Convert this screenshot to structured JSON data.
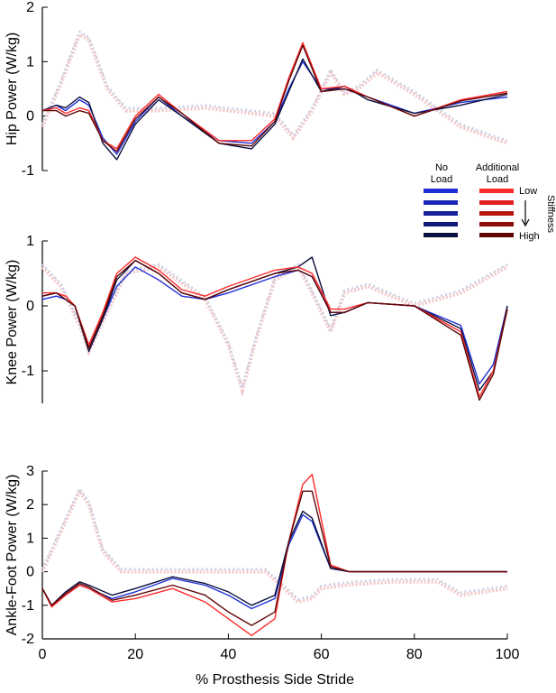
{
  "chart_data": [
    {
      "type": "line",
      "ylabel": "Hip Power (W/kg)",
      "xlim": [
        0,
        100
      ],
      "ylim": [
        -1,
        2
      ],
      "yticks": [
        -1,
        0,
        1,
        2
      ],
      "grid": false,
      "series": [
        {
          "group": "no_load",
          "level": 1,
          "x": [
            0,
            3,
            5,
            8,
            10,
            13,
            16,
            20,
            25,
            30,
            38,
            45,
            50,
            53,
            56,
            60,
            65,
            70,
            80,
            90,
            100
          ],
          "y": [
            0.1,
            0.2,
            0.1,
            0.3,
            0.2,
            -0.4,
            -0.7,
            -0.1,
            0.35,
            0.0,
            -0.45,
            -0.5,
            -0.1,
            0.5,
            1.0,
            0.5,
            0.5,
            0.35,
            0.05,
            0.25,
            0.35
          ]
        },
        {
          "group": "no_load",
          "level": 5,
          "x": [
            0,
            3,
            5,
            8,
            10,
            13,
            16,
            20,
            25,
            30,
            38,
            45,
            50,
            53,
            56,
            60,
            65,
            70,
            80,
            90,
            100
          ],
          "y": [
            0.1,
            0.2,
            0.15,
            0.35,
            0.25,
            -0.5,
            -0.8,
            -0.15,
            0.3,
            0.0,
            -0.5,
            -0.6,
            -0.15,
            0.45,
            1.05,
            0.45,
            0.55,
            0.3,
            0.05,
            0.2,
            0.4
          ]
        },
        {
          "group": "additional_load",
          "level": 1,
          "x": [
            0,
            3,
            5,
            8,
            10,
            13,
            16,
            20,
            25,
            30,
            38,
            45,
            50,
            53,
            56,
            60,
            65,
            70,
            80,
            90,
            100
          ],
          "y": [
            0.1,
            0.15,
            0.05,
            0.15,
            0.1,
            -0.45,
            -0.6,
            0.0,
            0.4,
            0.05,
            -0.45,
            -0.45,
            -0.05,
            0.7,
            1.35,
            0.5,
            0.55,
            0.35,
            0.0,
            0.3,
            0.45
          ]
        },
        {
          "group": "additional_load",
          "level": 5,
          "x": [
            0,
            3,
            5,
            8,
            10,
            13,
            16,
            20,
            25,
            30,
            38,
            45,
            50,
            53,
            56,
            60,
            65,
            70,
            80,
            90,
            100
          ],
          "y": [
            0.1,
            0.1,
            0.0,
            0.1,
            0.05,
            -0.45,
            -0.65,
            -0.05,
            0.35,
            0.05,
            -0.5,
            -0.55,
            -0.1,
            0.65,
            1.3,
            0.45,
            0.5,
            0.35,
            0.0,
            0.28,
            0.42
          ]
        },
        {
          "group": "contralateral",
          "dotted": true,
          "x": [
            0,
            4,
            8,
            10,
            14,
            18,
            25,
            35,
            45,
            50,
            54,
            58,
            62,
            65,
            68,
            72,
            80,
            90,
            100
          ],
          "y": [
            -0.2,
            0.6,
            1.5,
            1.4,
            0.5,
            0.1,
            0.1,
            0.15,
            0.05,
            0.0,
            -0.4,
            0.1,
            0.8,
            0.4,
            0.5,
            0.8,
            0.4,
            -0.2,
            -0.5
          ]
        }
      ]
    },
    {
      "type": "line",
      "ylabel": "Knee Power (W/kg)",
      "xlim": [
        0,
        100
      ],
      "ylim": [
        -1.5,
        1
      ],
      "yticks": [
        -1,
        0,
        1
      ],
      "grid": false,
      "series": [
        {
          "group": "no_load",
          "level": 1,
          "x": [
            0,
            3,
            5,
            7,
            10,
            13,
            16,
            20,
            25,
            30,
            35,
            40,
            50,
            55,
            58,
            62,
            65,
            70,
            80,
            90,
            94,
            97,
            100
          ],
          "y": [
            0.1,
            0.15,
            0.1,
            0.0,
            -0.65,
            -0.2,
            0.3,
            0.6,
            0.4,
            0.15,
            0.1,
            0.2,
            0.45,
            0.55,
            0.45,
            -0.1,
            -0.1,
            0.05,
            0.0,
            -0.3,
            -1.2,
            -0.9,
            0.0
          ]
        },
        {
          "group": "no_load",
          "level": 5,
          "x": [
            0,
            3,
            5,
            7,
            10,
            13,
            16,
            20,
            25,
            30,
            35,
            40,
            50,
            55,
            58,
            62,
            65,
            70,
            80,
            90,
            94,
            97,
            100
          ],
          "y": [
            0.15,
            0.2,
            0.1,
            0.0,
            -0.7,
            -0.2,
            0.4,
            0.7,
            0.5,
            0.2,
            0.1,
            0.25,
            0.5,
            0.6,
            0.75,
            -0.15,
            -0.1,
            0.05,
            0.0,
            -0.35,
            -1.3,
            -1.0,
            0.0
          ]
        },
        {
          "group": "additional_load",
          "level": 1,
          "x": [
            0,
            3,
            5,
            7,
            10,
            13,
            16,
            20,
            25,
            30,
            35,
            40,
            50,
            55,
            58,
            62,
            65,
            70,
            80,
            90,
            94,
            97,
            100
          ],
          "y": [
            0.2,
            0.2,
            0.15,
            0.0,
            -0.6,
            -0.1,
            0.5,
            0.75,
            0.55,
            0.25,
            0.15,
            0.3,
            0.55,
            0.6,
            0.5,
            -0.05,
            -0.05,
            0.05,
            0.0,
            -0.4,
            -1.4,
            -1.0,
            -0.05
          ]
        },
        {
          "group": "additional_load",
          "level": 5,
          "x": [
            0,
            3,
            5,
            7,
            10,
            13,
            16,
            20,
            25,
            30,
            35,
            40,
            50,
            55,
            58,
            62,
            65,
            70,
            80,
            90,
            94,
            97,
            100
          ],
          "y": [
            0.15,
            0.2,
            0.1,
            0.0,
            -0.65,
            -0.15,
            0.45,
            0.7,
            0.5,
            0.2,
            0.1,
            0.25,
            0.5,
            0.55,
            0.45,
            -0.1,
            -0.1,
            0.05,
            0.0,
            -0.45,
            -1.45,
            -1.05,
            -0.05
          ]
        },
        {
          "group": "contralateral",
          "dotted": true,
          "x": [
            0,
            4,
            8,
            10,
            14,
            18,
            25,
            35,
            40,
            43,
            46,
            50,
            55,
            58,
            62,
            65,
            70,
            80,
            90,
            100
          ],
          "y": [
            0.6,
            0.3,
            -0.3,
            -0.7,
            -0.1,
            0.5,
            0.6,
            0.1,
            -0.6,
            -1.3,
            -0.5,
            0.4,
            0.6,
            0.2,
            -0.4,
            0.2,
            0.3,
            0.0,
            0.2,
            0.6
          ]
        }
      ]
    },
    {
      "type": "line",
      "ylabel": "Ankle-Foot Power (W/kg)",
      "xlabel": "% Prosthesis Side Stride",
      "xlim": [
        0,
        100
      ],
      "ylim": [
        -2,
        3
      ],
      "yticks": [
        -2,
        -1,
        0,
        1,
        2,
        3
      ],
      "xticks": [
        0,
        20,
        40,
        60,
        80,
        100
      ],
      "grid": false,
      "series": [
        {
          "group": "no_load",
          "level": 1,
          "x": [
            0,
            2,
            5,
            8,
            10,
            15,
            20,
            28,
            35,
            40,
            45,
            50,
            53,
            56,
            58,
            62,
            66,
            70,
            80,
            100
          ],
          "y": [
            -0.5,
            -1.0,
            -0.7,
            -0.4,
            -0.5,
            -0.8,
            -0.6,
            -0.2,
            -0.4,
            -0.7,
            -1.1,
            -0.8,
            0.8,
            1.7,
            1.5,
            0.1,
            0.0,
            0.0,
            0.0,
            0.0
          ]
        },
        {
          "group": "no_load",
          "level": 5,
          "x": [
            0,
            2,
            5,
            8,
            10,
            15,
            20,
            28,
            35,
            40,
            45,
            50,
            53,
            56,
            58,
            62,
            66,
            70,
            80,
            100
          ],
          "y": [
            -0.5,
            -1.0,
            -0.6,
            -0.3,
            -0.4,
            -0.7,
            -0.5,
            -0.15,
            -0.35,
            -0.6,
            -1.0,
            -0.7,
            0.9,
            1.8,
            1.6,
            0.1,
            0.0,
            0.0,
            0.0,
            0.0
          ]
        },
        {
          "group": "additional_load",
          "level": 1,
          "x": [
            0,
            2,
            5,
            8,
            10,
            15,
            20,
            28,
            35,
            40,
            45,
            50,
            53,
            56,
            58,
            62,
            66,
            70,
            80,
            100
          ],
          "y": [
            -0.5,
            -1.05,
            -0.7,
            -0.4,
            -0.5,
            -0.9,
            -0.8,
            -0.5,
            -0.9,
            -1.4,
            -1.9,
            -1.4,
            0.9,
            2.6,
            2.9,
            0.2,
            0.0,
            0.0,
            0.0,
            0.0
          ]
        },
        {
          "group": "additional_load",
          "level": 5,
          "x": [
            0,
            2,
            5,
            8,
            10,
            15,
            20,
            28,
            35,
            40,
            45,
            50,
            53,
            56,
            58,
            62,
            66,
            70,
            80,
            100
          ],
          "y": [
            -0.5,
            -1.0,
            -0.65,
            -0.35,
            -0.45,
            -0.85,
            -0.7,
            -0.4,
            -0.7,
            -1.2,
            -1.6,
            -1.2,
            0.9,
            2.4,
            2.4,
            0.15,
            0.0,
            0.0,
            0.0,
            0.0
          ]
        },
        {
          "group": "contralateral",
          "dotted": true,
          "x": [
            0,
            4,
            8,
            10,
            13,
            17,
            20,
            30,
            40,
            48,
            52,
            55,
            58,
            60,
            65,
            75,
            85,
            90,
            100
          ],
          "y": [
            0.0,
            1.2,
            2.4,
            2.0,
            0.6,
            0.0,
            0.0,
            0.0,
            0.0,
            0.0,
            -0.5,
            -0.9,
            -0.8,
            -0.5,
            -0.4,
            -0.3,
            -0.3,
            -0.7,
            -0.5
          ]
        }
      ]
    }
  ],
  "legend": {
    "no_load_label": [
      "No",
      "Load"
    ],
    "load_label": [
      "Additional",
      "Load"
    ],
    "stiffness_label": "Stiffness",
    "low_label": "Low",
    "high_label": "High",
    "no_load_colors": [
      "#1f2fd6",
      "#1a26b8",
      "#16209a",
      "#111a7a",
      "#0b0f3e"
    ],
    "load_colors": [
      "#ff2a2a",
      "#e01e1e",
      "#b81414",
      "#8e0c0c",
      "#5e0606"
    ]
  },
  "colors": {
    "contralateral_no_load": "#c9cfe6",
    "contralateral_load": "#f3c7c9",
    "axis": "#000000"
  }
}
